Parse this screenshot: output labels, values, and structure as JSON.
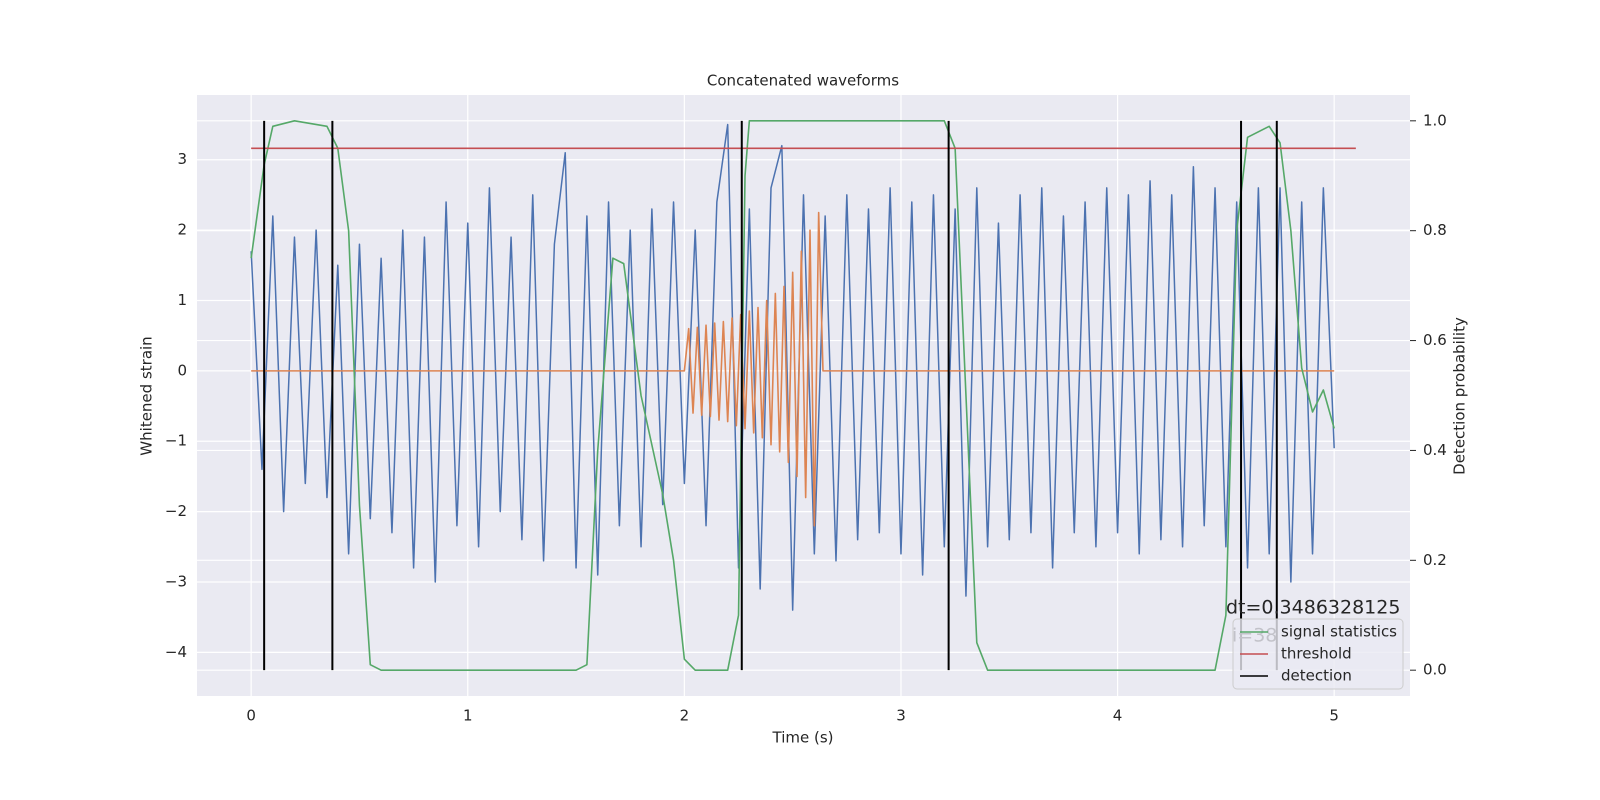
{
  "chart_data": {
    "type": "line",
    "title": "Concatenated waveforms",
    "xlabel": "Time (s)",
    "ylabel": "Whitened strain",
    "y2label": "Detection probability",
    "xlim": [
      -0.25,
      5.35
    ],
    "ylim": [
      -4.62,
      3.92
    ],
    "y2lim": [
      -0.047,
      1.047
    ],
    "xticks": [
      0,
      1,
      2,
      3,
      4,
      5
    ],
    "yticks": [
      {
        "value": -4,
        "label": "−4"
      },
      {
        "value": -3,
        "label": "−3"
      },
      {
        "value": -2,
        "label": "−2"
      },
      {
        "value": -1,
        "label": "−1"
      },
      0,
      1,
      2,
      3
    ],
    "y2ticks": [
      {
        "value": 0,
        "label": "0.0"
      },
      0.2,
      0.4,
      0.6,
      0.8,
      {
        "value": 1,
        "label": "1.0"
      }
    ],
    "grid": true,
    "legend": "lower right",
    "series": [
      {
        "color": "#4c72b0",
        "x": [
          0,
          0.05,
          0.1,
          0.15,
          0.2,
          0.25,
          0.3,
          0.35,
          0.4,
          0.45,
          0.5,
          0.55,
          0.6,
          0.65,
          0.7,
          0.75,
          0.8,
          0.85,
          0.9,
          0.95,
          1.0,
          1.05,
          1.1,
          1.15,
          1.2,
          1.25,
          1.3,
          1.35,
          1.4,
          1.45,
          1.5,
          1.55,
          1.6,
          1.65,
          1.7,
          1.75,
          1.8,
          1.85,
          1.9,
          1.95,
          2.0,
          2.05,
          2.1,
          2.15,
          2.2,
          2.25,
          2.3,
          2.35,
          2.4,
          2.45,
          2.5,
          2.55,
          2.6,
          2.65,
          2.7,
          2.75,
          2.8,
          2.85,
          2.9,
          2.95,
          3.0,
          3.05,
          3.1,
          3.15,
          3.2,
          3.25,
          3.3,
          3.35,
          3.4,
          3.45,
          3.5,
          3.55,
          3.6,
          3.65,
          3.7,
          3.75,
          3.8,
          3.85,
          3.9,
          3.95,
          4.0,
          4.05,
          4.1,
          4.15,
          4.2,
          4.25,
          4.3,
          4.35,
          4.4,
          4.45,
          4.5,
          4.55,
          4.6,
          4.65,
          4.7,
          4.75,
          4.8,
          4.85,
          4.9,
          4.95,
          5.0
        ],
        "values": [
          1.7,
          -1.4,
          2.2,
          -2.0,
          1.9,
          -1.6,
          2.0,
          -1.8,
          1.5,
          -2.6,
          1.8,
          -2.1,
          1.6,
          -2.3,
          2.0,
          -2.8,
          1.9,
          -3.0,
          2.4,
          -2.2,
          2.1,
          -2.5,
          2.6,
          -2.0,
          1.9,
          -2.4,
          2.5,
          -2.7,
          1.8,
          3.1,
          -2.8,
          2.2,
          -2.9,
          2.4,
          -2.2,
          2.0,
          -2.5,
          2.3,
          -1.9,
          2.4,
          -1.6,
          2.0,
          -2.2,
          2.4,
          3.5,
          -2.8,
          2.3,
          -3.1,
          2.6,
          3.2,
          -3.4,
          2.5,
          -2.6,
          2.2,
          -2.7,
          2.5,
          -2.4,
          2.3,
          -2.3,
          2.6,
          -2.6,
          2.4,
          -2.9,
          2.5,
          -2.5,
          2.3,
          -3.2,
          2.6,
          -2.5,
          2.1,
          -2.4,
          2.5,
          -2.3,
          2.6,
          -2.8,
          2.2,
          -2.3,
          2.4,
          -2.5,
          2.6,
          -2.3,
          2.5,
          -2.6,
          2.7,
          -2.4,
          2.5,
          -2.5,
          2.9,
          -2.2,
          2.6,
          -2.5,
          2.4,
          -2.8,
          2.6,
          -2.6,
          2.6,
          -3.0,
          2.4,
          -2.6,
          2.6,
          -1.1
        ]
      },
      {
        "color": "#dd8452",
        "x": [
          0,
          2.0,
          2.02,
          2.04,
          2.06,
          2.08,
          2.1,
          2.12,
          2.14,
          2.16,
          2.18,
          2.2,
          2.22,
          2.24,
          2.26,
          2.28,
          2.3,
          2.32,
          2.34,
          2.36,
          2.38,
          2.4,
          2.42,
          2.44,
          2.46,
          2.48,
          2.5,
          2.52,
          2.54,
          2.56,
          2.58,
          2.6,
          2.62,
          2.64,
          5.0
        ],
        "values": [
          0,
          0,
          0.6,
          -0.6,
          0.62,
          -0.63,
          0.65,
          -0.65,
          0.68,
          -0.7,
          0.7,
          -0.72,
          0.75,
          -0.78,
          0.8,
          -0.82,
          0.85,
          -0.88,
          0.9,
          -0.95,
          1.0,
          -1.05,
          1.1,
          -1.15,
          1.2,
          -1.3,
          1.4,
          -1.5,
          1.7,
          -1.8,
          2.0,
          -2.2,
          2.25,
          0,
          0
        ]
      },
      {
        "name": "signal statistics",
        "color": "#55a868",
        "axis": "y2",
        "x": [
          0,
          0.06,
          0.1,
          0.2,
          0.35,
          0.4,
          0.45,
          0.5,
          0.55,
          0.6,
          1.5,
          1.55,
          1.6,
          1.67,
          1.72,
          1.8,
          1.9,
          1.95,
          2.0,
          2.05,
          2.2,
          2.25,
          2.28,
          2.3,
          3.2,
          3.25,
          3.3,
          3.35,
          3.4,
          4.45,
          4.5,
          4.55,
          4.6,
          4.7,
          4.75,
          4.8,
          4.85,
          4.9,
          4.95,
          5.0
        ],
        "values": [
          0.75,
          0.92,
          0.99,
          1.0,
          0.99,
          0.95,
          0.8,
          0.3,
          0.01,
          0,
          0,
          0.01,
          0.4,
          0.75,
          0.74,
          0.5,
          0.32,
          0.2,
          0.02,
          0,
          0,
          0.1,
          0.9,
          1.0,
          1.0,
          0.95,
          0.5,
          0.05,
          0,
          0,
          0.1,
          0.8,
          0.97,
          0.99,
          0.96,
          0.8,
          0.55,
          0.47,
          0.51,
          0.44
        ]
      },
      {
        "name": "threshold",
        "color": "#c44e52",
        "axis": "y2",
        "x": [
          0,
          5.1
        ],
        "values": [
          0.95,
          0.95
        ]
      }
    ],
    "vlines": {
      "name": "detection",
      "color": "#000000",
      "axis": "y2",
      "x": [
        0.06,
        0.375,
        2.265,
        3.22,
        4.57,
        4.735
      ],
      "ymin": 0,
      "ymax": 1
    },
    "annotations": [
      "dt=0.3486328125",
      "i=38"
    ]
  }
}
